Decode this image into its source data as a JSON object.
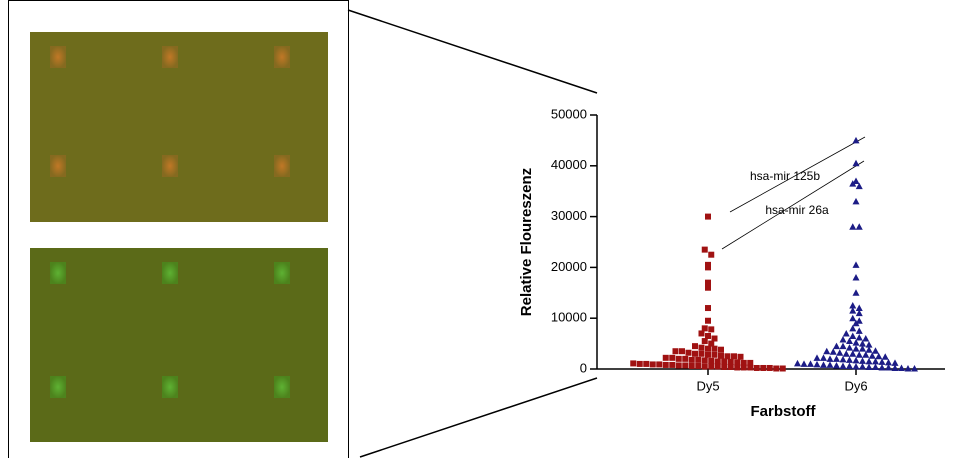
{
  "chart_data": {
    "type": "scatter",
    "y_label": "Relative Floureszenz",
    "x_label": "Farbstoff",
    "categories": [
      "Dy5",
      "Dy6"
    ],
    "series": [
      {
        "color": "#a01212",
        "marker": "square",
        "values": [
          30000,
          23500,
          22500,
          20500,
          20000,
          17000,
          16000,
          12000,
          9500,
          8000,
          7800,
          7000,
          6500,
          6000,
          5500,
          5000,
          4500,
          4200,
          4000,
          4000,
          3800,
          3500,
          3500,
          3200,
          3000,
          3000,
          2800,
          2800,
          2600,
          2500,
          2500,
          2400,
          2200,
          2200,
          2000,
          2000,
          1800,
          1800,
          1700,
          1600,
          1500,
          1500,
          1400,
          1300,
          1200,
          1200,
          1100,
          1000,
          1000,
          900,
          900,
          800,
          800,
          700,
          700,
          600,
          600,
          500,
          500,
          500,
          400,
          400,
          300,
          300,
          300,
          200,
          200,
          200,
          100,
          100
        ]
      },
      {
        "color": "#1c1c86",
        "marker": "triangle",
        "values": [
          45000,
          40500,
          37000,
          36500,
          36000,
          33000,
          28000,
          28000,
          20500,
          18000,
          15000,
          12500,
          12000,
          11500,
          11000,
          10000,
          9500,
          9000,
          8000,
          7500,
          7000,
          6500,
          6200,
          6000,
          5800,
          5500,
          5200,
          5000,
          4800,
          4500,
          4500,
          4200,
          4000,
          4000,
          3800,
          3600,
          3500,
          3400,
          3200,
          3000,
          3000,
          2800,
          2800,
          2600,
          2500,
          2400,
          2200,
          2200,
          2000,
          2000,
          1900,
          1800,
          1700,
          1600,
          1500,
          1500,
          1400,
          1300,
          1200,
          1100,
          1000,
          1000,
          900,
          800,
          800,
          700,
          600,
          600,
          500,
          500,
          400,
          400,
          300,
          300,
          200,
          200,
          100,
          100
        ]
      }
    ],
    "ylim": [
      0,
      50000
    ],
    "yticks": [
      0,
      10000,
      20000,
      30000,
      40000,
      50000
    ],
    "annotations": [
      {
        "text": "hsa-mir 125b"
      },
      {
        "text": "hsa-mir 26a"
      }
    ]
  }
}
